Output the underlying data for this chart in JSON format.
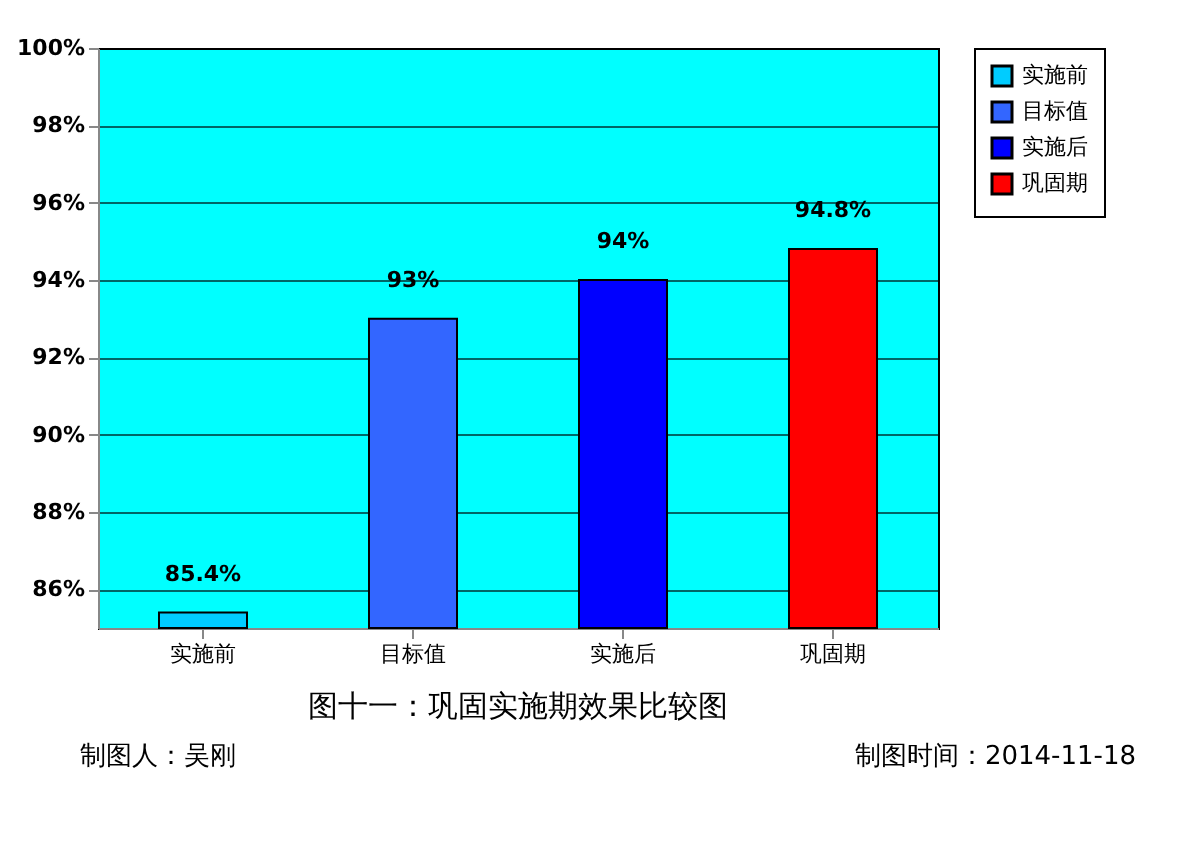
{
  "chart_data": {
    "type": "bar",
    "title": "图十一：巩固实施期效果比较图",
    "categories": [
      "实施前",
      "目标值",
      "实施后",
      "巩固期"
    ],
    "series": [
      {
        "name": "实施前",
        "color": "#00ccff",
        "values": [
          85.4,
          null,
          null,
          null
        ],
        "value_labels": [
          "85.4%",
          null,
          null,
          null
        ]
      },
      {
        "name": "目标值",
        "color": "#3366ff",
        "values": [
          null,
          93,
          null,
          null
        ],
        "value_labels": [
          null,
          "93%",
          null,
          null
        ]
      },
      {
        "name": "实施后",
        "color": "#0000ff",
        "values": [
          null,
          null,
          94,
          null
        ],
        "value_labels": [
          null,
          null,
          "94%",
          null
        ]
      },
      {
        "name": "巩固期",
        "color": "#ff0000",
        "values": [
          null,
          null,
          null,
          94.8
        ],
        "value_labels": [
          null,
          null,
          null,
          "94.8%"
        ]
      }
    ],
    "ylim": [
      85,
      100
    ],
    "yticks": [
      {
        "value": 86,
        "label": "86%"
      },
      {
        "value": 88,
        "label": "88%"
      },
      {
        "value": 90,
        "label": "90%"
      },
      {
        "value": 92,
        "label": "92%"
      },
      {
        "value": 94,
        "label": "94%"
      },
      {
        "value": 96,
        "label": "96%"
      },
      {
        "value": 98,
        "label": "98%"
      },
      {
        "value": 100,
        "label": "100%"
      }
    ],
    "grid": "y",
    "legend": "right",
    "annotations": [
      "制图人：吴刚",
      "制图时间：2014-11-18"
    ]
  }
}
